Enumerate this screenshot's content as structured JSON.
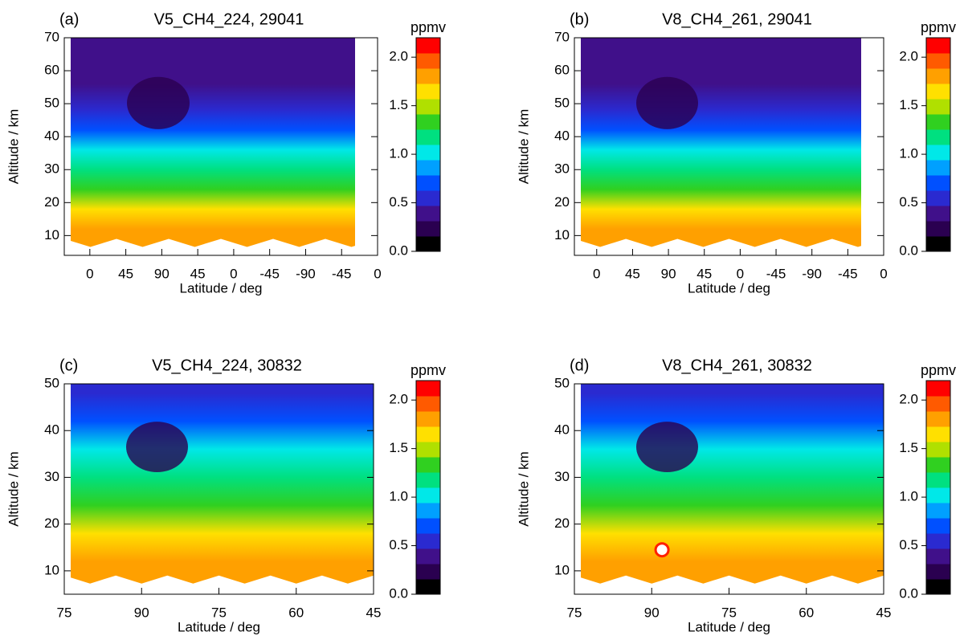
{
  "chart_data": [
    {
      "type": "contour",
      "panel_label": "(a)",
      "title": "V5_CH4_224, 29041",
      "xlabel": "Latitude / deg",
      "ylabel": "Altitude / km",
      "colorbar_label": "ppmv",
      "xlim": [
        -32,
        360
      ],
      "xticks": [
        {
          "value": 0,
          "label": "0"
        },
        {
          "value": 45,
          "label": "45"
        },
        {
          "value": 90,
          "label": "90"
        },
        {
          "value": 135,
          "label": "45"
        },
        {
          "value": 180,
          "label": "0"
        },
        {
          "value": 225,
          "label": "-45"
        },
        {
          "value": 270,
          "label": "-90"
        },
        {
          "value": 315,
          "label": "-45"
        },
        {
          "value": 360,
          "label": "0"
        }
      ],
      "ylim": [
        4,
        70
      ],
      "yticks": [
        10,
        20,
        30,
        40,
        50,
        60,
        70
      ],
      "clim": [
        0,
        2.2
      ],
      "cticks": [
        {
          "value": 0,
          "label": "0.0"
        },
        {
          "value": 0.5,
          "label": "0.5"
        },
        {
          "value": 1,
          "label": "1.0"
        },
        {
          "value": 1.5,
          "label": "1.5"
        },
        {
          "value": 2,
          "label": "2.0"
        }
      ],
      "colormap": [
        "#000000",
        "#2a0050",
        "#40108a",
        "#2a2ad0",
        "#0050ff",
        "#00a0ff",
        "#00e8e8",
        "#00e080",
        "#30d020",
        "#b0e000",
        "#ffe000",
        "#ffa000",
        "#ff5a00",
        "#ff0000"
      ]
    },
    {
      "type": "contour",
      "panel_label": "(b)",
      "title": "V8_CH4_261, 29041",
      "xlabel": "Latitude / deg",
      "ylabel": "Altitude / km",
      "colorbar_label": "ppmv",
      "xlim": [
        -28,
        360
      ],
      "xticks": [
        {
          "value": 0,
          "label": "0"
        },
        {
          "value": 45,
          "label": "45"
        },
        {
          "value": 90,
          "label": "90"
        },
        {
          "value": 135,
          "label": "45"
        },
        {
          "value": 180,
          "label": "0"
        },
        {
          "value": 225,
          "label": "-45"
        },
        {
          "value": 270,
          "label": "-90"
        },
        {
          "value": 315,
          "label": "-45"
        },
        {
          "value": 360,
          "label": "0"
        }
      ],
      "ylim": [
        4,
        70
      ],
      "yticks": [
        10,
        20,
        30,
        40,
        50,
        60,
        70
      ],
      "clim": [
        0,
        2.2
      ],
      "cticks": [
        {
          "value": 0,
          "label": "0.0"
        },
        {
          "value": 0.5,
          "label": "0.5"
        },
        {
          "value": 1,
          "label": "1.0"
        },
        {
          "value": 1.5,
          "label": "1.5"
        },
        {
          "value": 2,
          "label": "2.0"
        }
      ],
      "colormap": [
        "#000000",
        "#2a0050",
        "#40108a",
        "#2a2ad0",
        "#0050ff",
        "#00a0ff",
        "#00e8e8",
        "#00e080",
        "#30d020",
        "#b0e000",
        "#ffe000",
        "#ffa000",
        "#ff5a00",
        "#ff0000"
      ]
    },
    {
      "type": "contour",
      "panel_label": "(c)",
      "title": "V5_CH4_224, 30832",
      "xlabel": "Latitude / deg",
      "ylabel": "Altitude / km",
      "colorbar_label": "ppmv",
      "xlim": [
        0,
        60
      ],
      "xticks": [
        {
          "value": 0,
          "label": "75"
        },
        {
          "value": 15,
          "label": "90"
        },
        {
          "value": 30,
          "label": "75"
        },
        {
          "value": 45,
          "label": "60"
        },
        {
          "value": 60,
          "label": "45"
        }
      ],
      "ylim": [
        5,
        50
      ],
      "yticks": [
        10,
        20,
        30,
        40,
        50
      ],
      "clim": [
        0,
        2.2
      ],
      "cticks": [
        {
          "value": 0,
          "label": "0.0"
        },
        {
          "value": 0.5,
          "label": "0.5"
        },
        {
          "value": 1,
          "label": "1.0"
        },
        {
          "value": 1.5,
          "label": "1.5"
        },
        {
          "value": 2,
          "label": "2.0"
        }
      ],
      "colormap": [
        "#000000",
        "#2a0050",
        "#40108a",
        "#2a2ad0",
        "#0050ff",
        "#00a0ff",
        "#00e8e8",
        "#00e080",
        "#30d020",
        "#b0e000",
        "#ffe000",
        "#ffa000",
        "#ff5a00",
        "#ff0000"
      ]
    },
    {
      "type": "contour",
      "panel_label": "(d)",
      "title": "V8_CH4_261, 30832",
      "xlabel": "Latitude / deg",
      "ylabel": "Altitude / km",
      "colorbar_label": "ppmv",
      "xlim": [
        0,
        60
      ],
      "xticks": [
        {
          "value": 0,
          "label": "75"
        },
        {
          "value": 15,
          "label": "90"
        },
        {
          "value": 30,
          "label": "75"
        },
        {
          "value": 45,
          "label": "60"
        },
        {
          "value": 60,
          "label": "45"
        }
      ],
      "ylim": [
        5,
        50
      ],
      "yticks": [
        10,
        20,
        30,
        40,
        50
      ],
      "clim": [
        0,
        2.2
      ],
      "cticks": [
        {
          "value": 0,
          "label": "0.0"
        },
        {
          "value": 0.5,
          "label": "0.5"
        },
        {
          "value": 1,
          "label": "1.0"
        },
        {
          "value": 1.5,
          "label": "1.5"
        },
        {
          "value": 2,
          "label": "2.0"
        }
      ],
      "colormap": [
        "#000000",
        "#2a0050",
        "#40108a",
        "#2a2ad0",
        "#0050ff",
        "#00a0ff",
        "#00e8e8",
        "#00e080",
        "#30d020",
        "#b0e000",
        "#ffe000",
        "#ffa000",
        "#ff5a00",
        "#ff0000"
      ]
    }
  ]
}
